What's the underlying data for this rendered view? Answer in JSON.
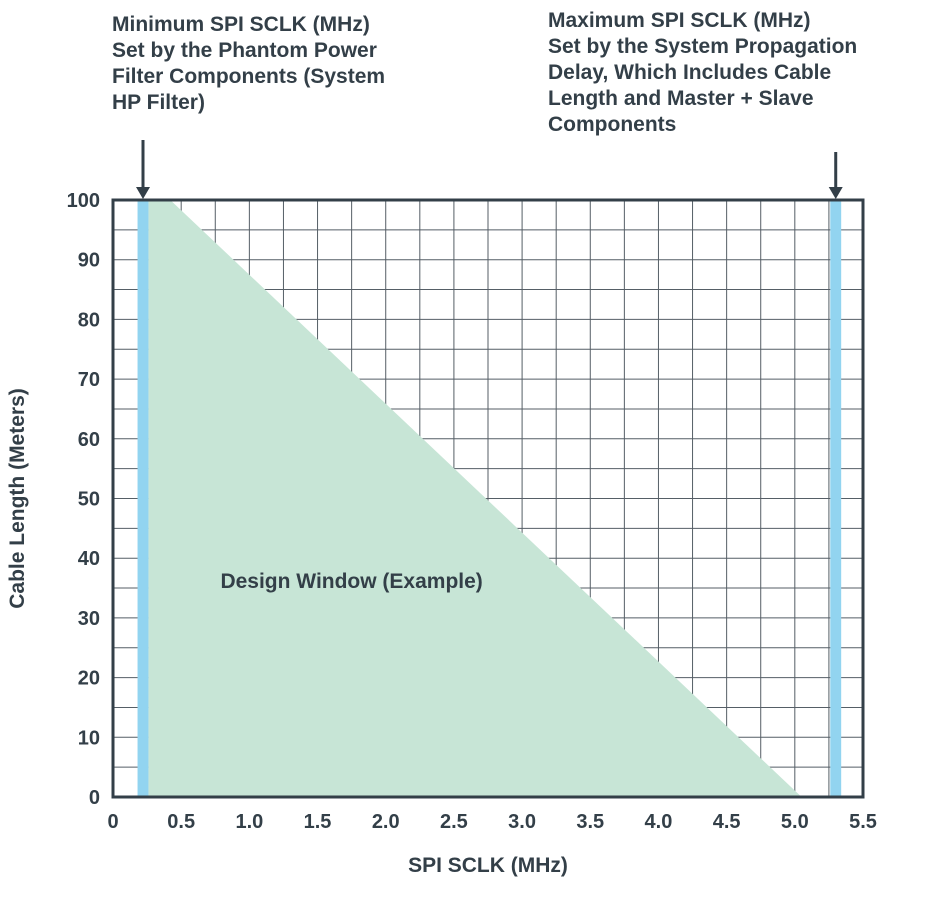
{
  "figure": {
    "annotations": {
      "left": {
        "text": "Minimum SPI SCLK (MHz)\nSet by the Phantom Power\nFilter Components (System\nHP Filter)"
      },
      "right": {
        "text": "Maximum SPI SCLK (MHz)\nSet by the System Propagation\nDelay, Which Includes Cable\nLength and Master + Slave\nComponents"
      }
    }
  },
  "colors": {
    "text": "#333f48",
    "grid": "#555e66",
    "border": "#333f48",
    "band": "#92d4f0",
    "area": "#c7e5d6"
  },
  "chart_data": {
    "type": "area",
    "title": "",
    "xlabel": "SPI SCLK (MHz)",
    "ylabel": "Cable Length  (Meters)",
    "xlim": [
      0,
      5.5
    ],
    "ylim": [
      0,
      100
    ],
    "x_tick_step": 0.5,
    "x_minor_step": 0.25,
    "y_tick_step": 10,
    "y_minor_step": 5,
    "grid": true,
    "x_tick_labels": [
      "0",
      "0.5",
      "1.0",
      "1.5",
      "2.0",
      "2.5",
      "3.0",
      "3.5",
      "4.0",
      "4.5",
      "5.0",
      "5.5"
    ],
    "y_tick_labels": [
      "0",
      "10",
      "20",
      "30",
      "40",
      "50",
      "60",
      "70",
      "80",
      "90",
      "100"
    ],
    "design_window": {
      "label": "Design Window (Example)",
      "polygon": [
        [
          0.26,
          0
        ],
        [
          0.26,
          100
        ],
        [
          0.42,
          100
        ],
        [
          5.05,
          0
        ]
      ],
      "label_pos": [
        1.75,
        35
      ]
    },
    "bands": [
      {
        "name": "min-sclk",
        "x": 0.22,
        "width": 0.08
      },
      {
        "name": "max-sclk",
        "x": 5.3,
        "width": 0.08
      }
    ]
  }
}
